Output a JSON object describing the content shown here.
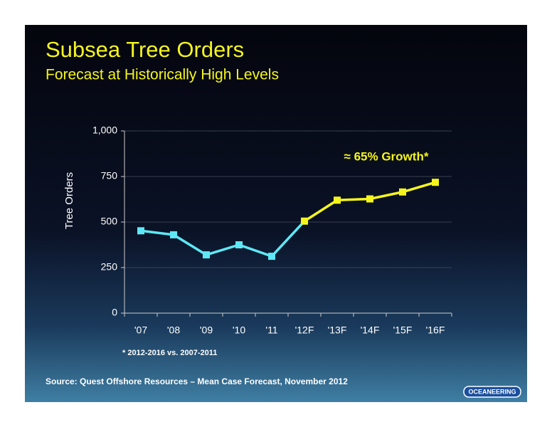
{
  "chart_data": {
    "type": "line",
    "title": "Subsea Tree Orders",
    "subtitle": "Forecast at Historically High Levels",
    "y_label": "Tree Orders",
    "annotation": "≈ 65% Growth*",
    "footnote": "* 2012-2016 vs. 2007-2011",
    "source": "Source:  Quest Offshore Resources – Mean Case Forecast, November 2012",
    "logo": "OCEANEERING",
    "categories": [
      "'07",
      "'08",
      "'09",
      "'10",
      "'11",
      "'12F",
      "'13F",
      "'14F",
      "'15F",
      "'16F"
    ],
    "values": [
      452,
      430,
      320,
      375,
      312,
      505,
      620,
      627,
      665,
      718
    ],
    "point_colors": [
      "#5ee8f5",
      "#5ee8f5",
      "#5ee8f5",
      "#5ee8f5",
      "#5ee8f5",
      "#f5f51e",
      "#f5f51e",
      "#f5f51e",
      "#f5f51e",
      "#f5f51e"
    ],
    "ylim": [
      0,
      1000
    ],
    "yticks": [
      0,
      250,
      500,
      750,
      {
        "value": 1000,
        "label": "1,000"
      }
    ],
    "grid": true
  }
}
